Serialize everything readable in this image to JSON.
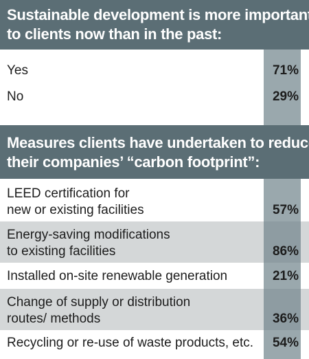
{
  "chart_data": [
    {
      "type": "table",
      "title": "Sustainable development is more important to clients now than in the past:",
      "title_lines": [
        "Sustainable development is more important",
        "to clients now than in the past:"
      ],
      "categories": [
        "Yes",
        "No"
      ],
      "values": [
        71,
        29
      ],
      "rows": [
        {
          "label_lines": [
            "Yes"
          ],
          "value": "71%"
        },
        {
          "label_lines": [
            "No"
          ],
          "value": "29%"
        }
      ]
    },
    {
      "type": "table",
      "title": "Measures clients have undertaken to reduce their companies’ “carbon footprint”:",
      "title_lines": [
        "Measures clients have undertaken to reduce",
        "their companies’ “carbon footprint”:"
      ],
      "categories": [
        "LEED certification for new or existing facilities",
        "Energy-saving modifications to existing facilities",
        "Installed on-site renewable generation",
        "Change of supply or distribution routes/ methods",
        "Recycling or re-use of waste products, etc."
      ],
      "values": [
        57,
        86,
        21,
        36,
        54
      ],
      "rows": [
        {
          "label_lines": [
            "LEED certification for",
            "new or existing facilities"
          ],
          "value": "57%",
          "shaded": false
        },
        {
          "label_lines": [
            "Energy-saving modifications",
            "to existing facilities"
          ],
          "value": "86%",
          "shaded": true
        },
        {
          "label_lines": [
            "Installed on-site renewable generation"
          ],
          "value": "21%",
          "shaded": false
        },
        {
          "label_lines": [
            "Change of supply or distribution",
            "routes/ methods"
          ],
          "value": "36%",
          "shaded": true
        },
        {
          "label_lines": [
            "Recycling or re-use of waste products, etc."
          ],
          "value": "54%",
          "shaded": false
        }
      ]
    }
  ],
  "colors": {
    "header_background": "#5b6e75",
    "header_text": "#ffffff",
    "row_shade": "#d4d7d8",
    "value_column": "#9aa8ad",
    "value_column_shaded": "#8e9ca2",
    "text": "#1c1c1c"
  }
}
